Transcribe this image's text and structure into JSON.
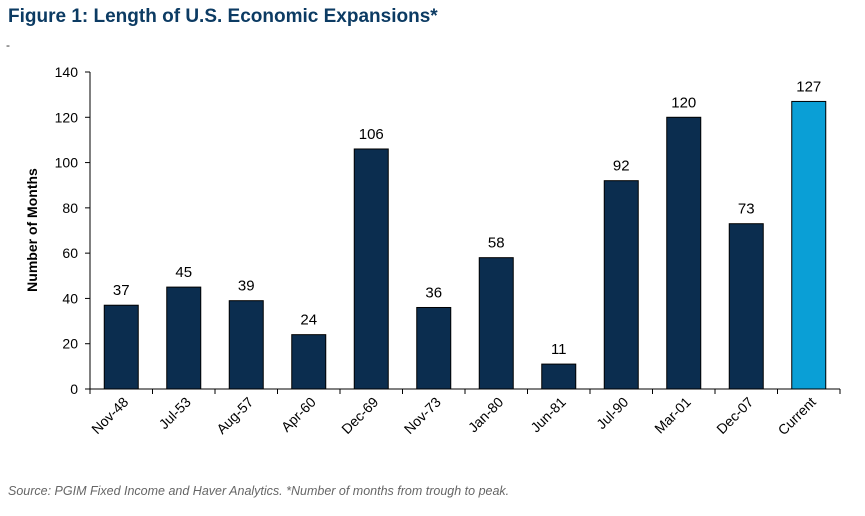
{
  "figure": {
    "title": "Figure 1: Length of U.S. Economic Expansions*",
    "dash": "-",
    "source": "Source: PGIM Fixed Income and Haver Analytics. *Number of months from trough to peak."
  },
  "colors": {
    "bar": "#0b2d4f",
    "highlight": "#0a9fd6",
    "title": "#0c3b63",
    "axis": "#000000"
  },
  "chart_data": {
    "type": "bar",
    "title": "Figure 1: Length of U.S. Economic Expansions*",
    "xlabel": "",
    "ylabel": "Number of Months",
    "ylim": [
      0,
      140
    ],
    "yticks": [
      0,
      20,
      40,
      60,
      80,
      100,
      120,
      140
    ],
    "grid": false,
    "categories": [
      "Nov-48",
      "Jul-53",
      "Aug-57",
      "Apr-60",
      "Dec-69",
      "Nov-73",
      "Jan-80",
      "Jun-81",
      "Jul-90",
      "Mar-01",
      "Dec-07",
      "Current"
    ],
    "values": [
      37,
      45,
      39,
      24,
      106,
      36,
      58,
      11,
      92,
      120,
      73,
      127
    ],
    "data_labels": [
      "37",
      "45",
      "39",
      "24",
      "106",
      "36",
      "58",
      "11",
      "92",
      "120",
      "73",
      "127"
    ],
    "highlight_category": "Current"
  }
}
